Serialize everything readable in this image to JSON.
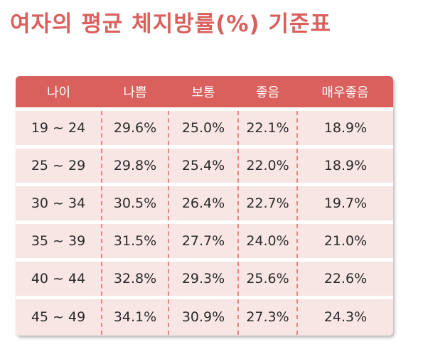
{
  "title": "여자의 평균 체지방률(%) 기준표",
  "table": {
    "headers": [
      "나이",
      "나쁨",
      "보통",
      "좋음",
      "매우좋음"
    ],
    "rows": [
      [
        "19 ~ 24",
        "29.6%",
        "25.0%",
        "22.1%",
        "18.9%"
      ],
      [
        "25 ~ 29",
        "29.8%",
        "25.4%",
        "22.0%",
        "18.9%"
      ],
      [
        "30 ~ 34",
        "30.5%",
        "26.4%",
        "22.7%",
        "19.7%"
      ],
      [
        "35 ~ 39",
        "31.5%",
        "27.7%",
        "24.0%",
        "21.0%"
      ],
      [
        "40 ~ 44",
        "32.8%",
        "29.3%",
        "25.6%",
        "22.6%"
      ],
      [
        "45 ~ 49",
        "34.1%",
        "30.9%",
        "27.3%",
        "24.3%"
      ]
    ]
  },
  "colors": {
    "accent": "#d9605d",
    "row_background": "#f8e6e4",
    "divider": "#e3877f"
  }
}
